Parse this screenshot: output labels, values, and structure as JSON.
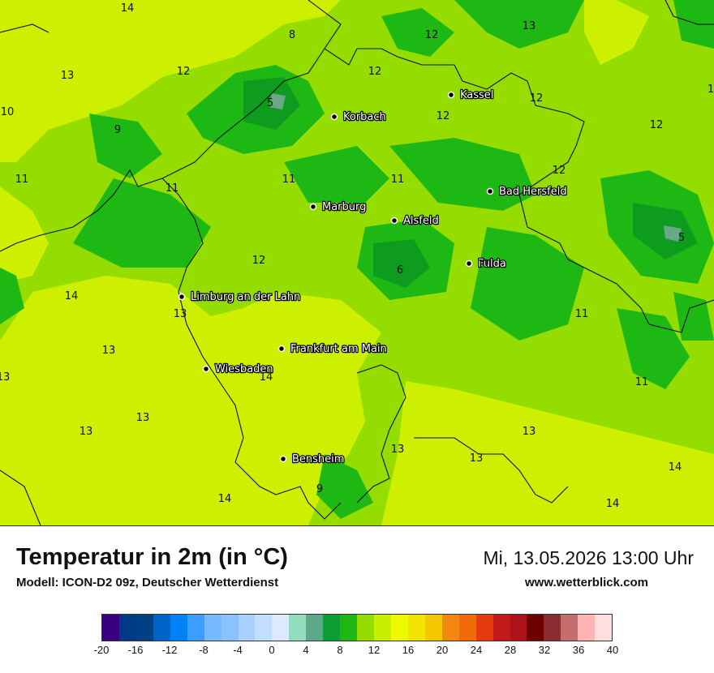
{
  "map": {
    "palette": {
      "c12": "#1eb815",
      "c10": "#0e9c1f",
      "c6": "#6aa987",
      "c14": "#95dd00",
      "c16": "#ccf000",
      "border": "#111111"
    },
    "cities": [
      {
        "name": "Kassel"
      },
      {
        "name": "Korbach"
      },
      {
        "name": "Bad Hersfeld"
      },
      {
        "name": "Marburg"
      },
      {
        "name": "Alsfeld"
      },
      {
        "name": "Fulda"
      },
      {
        "name": "Limburg an der Lahn"
      },
      {
        "name": "Frankfurt am Main"
      },
      {
        "name": "Wiesbaden"
      },
      {
        "name": "Bensheim"
      }
    ],
    "temperature_labels": [
      "14",
      "8",
      "12",
      "13",
      "13",
      "12",
      "12",
      "5",
      "10",
      "9",
      "12",
      "12",
      "12",
      "11",
      "11",
      "11",
      "11",
      "12",
      "5",
      "12",
      "6",
      "11",
      "14",
      "13",
      "11",
      "13",
      "13",
      "14",
      "11",
      "13",
      "13",
      "13",
      "13",
      "9",
      "14",
      "13",
      "14",
      "14",
      "1"
    ]
  },
  "footer": {
    "title": "Temperatur in 2m (in °C)",
    "model": "Modell: ICON-D2 09z, Deutscher Wetterdienst",
    "datetime": "Mi, 13.05.2026 13:00 Uhr",
    "website": "www.wetterblick.com"
  },
  "legend": {
    "colors": [
      "#3a0081",
      "#003a86",
      "#004186",
      "#0063c8",
      "#0081f5",
      "#3b9dff",
      "#75b9ff",
      "#88c2ff",
      "#a8d0ff",
      "#c2deff",
      "#dbeafd",
      "#94dcc0",
      "#5ba988",
      "#0e9c34",
      "#20b714",
      "#95dd00",
      "#c9ee00",
      "#ecf900",
      "#f0e400",
      "#f4c800",
      "#f28710",
      "#f06b0a",
      "#e43a10",
      "#c11a1a",
      "#b0121b",
      "#6e0000",
      "#8b2c30",
      "#c46e6e",
      "#ffb4b4",
      "#ffdede"
    ],
    "ticks": [
      "-20",
      "-16",
      "-12",
      "-8",
      "-4",
      "0",
      "4",
      "8",
      "12",
      "16",
      "20",
      "24",
      "28",
      "32",
      "36",
      "40"
    ]
  }
}
